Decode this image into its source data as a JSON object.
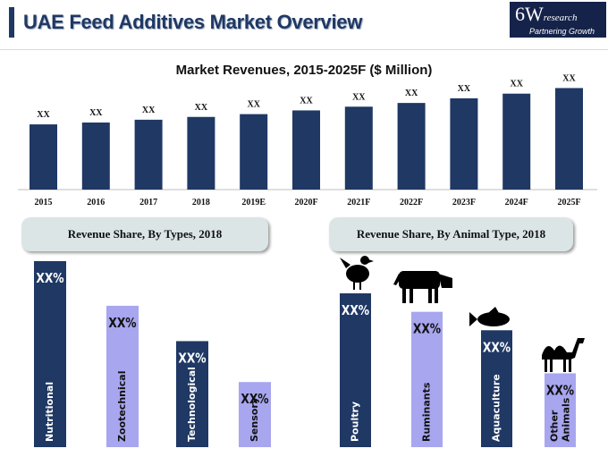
{
  "header": {
    "title": "UAE Feed Additives Market Overview",
    "logo_main": "6W",
    "logo_suffix": "research",
    "logo_tagline": "Partnering Growth"
  },
  "colors": {
    "navy": "#1f3864",
    "lavender": "#a8a6ee",
    "pill": "#dbe5e6"
  },
  "chart_data": [
    {
      "type": "bar",
      "title": "Market Revenues, 2015-2025F ($ Million)",
      "categories": [
        "2015",
        "2016",
        "2017",
        "2018",
        "2019E",
        "2020F",
        "2021F",
        "2022F",
        "2023F",
        "2024F",
        "2025F"
      ],
      "values": [
        70,
        72,
        75,
        78,
        81,
        85,
        89,
        93,
        98,
        103,
        109
      ],
      "data_labels": [
        "XX",
        "XX",
        "XX",
        "XX",
        "XX",
        "XX",
        "XX",
        "XX",
        "XX",
        "XX",
        "XX"
      ],
      "ylim": [
        0,
        120
      ],
      "xlabel": "",
      "ylabel": ""
    },
    {
      "type": "bar",
      "title": "Revenue Share, By Types, 2018",
      "categories": [
        "Nutritional",
        "Zootechnical",
        "Technological",
        "Sensory"
      ],
      "values": [
        100,
        76,
        57,
        35
      ],
      "data_labels": [
        "XX%",
        "XX%",
        "XX%",
        "XX%"
      ],
      "ylim": [
        0,
        100
      ]
    },
    {
      "type": "bar",
      "title": "Revenue Share, By Animal Type, 2018",
      "categories": [
        "Poultry",
        "Ruminants",
        "Aquaculture",
        "Other Animals"
      ],
      "values": [
        100,
        88,
        76,
        48
      ],
      "data_labels": [
        "XX%",
        "XX%",
        "XX%",
        "XX%"
      ],
      "icons": [
        "chicken-icon",
        "cow-icon",
        "fish-icon",
        "camel-icon"
      ],
      "ylim": [
        0,
        100
      ]
    }
  ]
}
